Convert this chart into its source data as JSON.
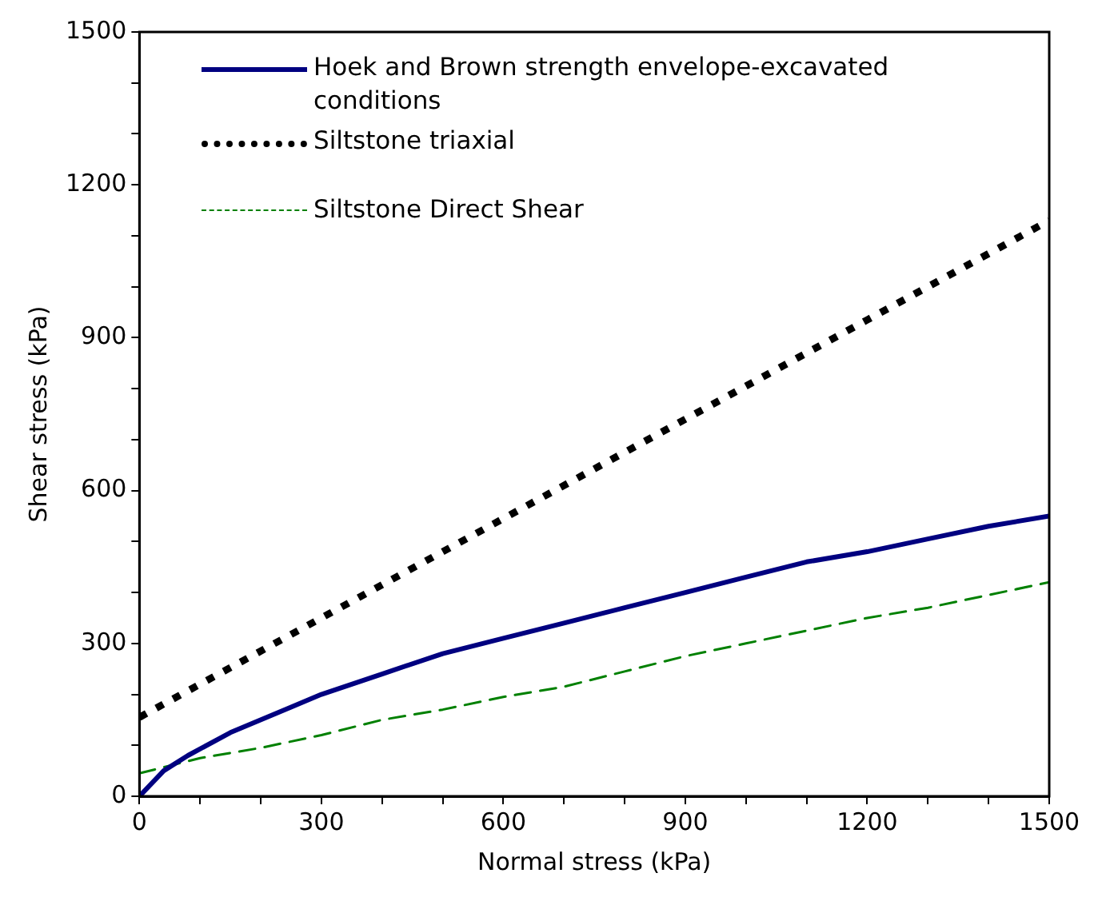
{
  "chart_data": {
    "type": "line",
    "xlabel": "Normal stress (kPa)",
    "ylabel": "Shear stress (kPa)",
    "xlim": [
      0,
      1500
    ],
    "ylim": [
      0,
      1500
    ],
    "xticks": [
      0,
      {
        "value": 100,
        "label": null
      },
      {
        "value": 200,
        "label": null
      },
      300,
      {
        "value": 400,
        "label": null
      },
      {
        "value": 500,
        "label": null
      },
      600,
      {
        "value": 700,
        "label": null
      },
      {
        "value": 800,
        "label": null
      },
      900,
      {
        "value": 1000,
        "label": null
      },
      {
        "value": 1100,
        "label": null
      },
      1200,
      {
        "value": 1300,
        "label": null
      },
      {
        "value": 1400,
        "label": null
      },
      1500
    ],
    "yticks": [
      0,
      {
        "value": 100,
        "label": null
      },
      {
        "value": 200,
        "label": null
      },
      300,
      {
        "value": 400,
        "label": null
      },
      {
        "value": 500,
        "label": null
      },
      600,
      {
        "value": 700,
        "label": null
      },
      {
        "value": 800,
        "label": null
      },
      900,
      {
        "value": 1000,
        "label": null
      },
      {
        "value": 1100,
        "label": null
      },
      1200,
      {
        "value": 1300,
        "label": null
      },
      {
        "value": 1400,
        "label": null
      },
      1500
    ],
    "grid": false,
    "legend": "top left",
    "marker": "none",
    "series": [
      {
        "name": "Hoek and Brown strength envelope-excavated conditions",
        "color": "#000080",
        "line_style": "solid",
        "x": [
          0,
          40,
          80,
          150,
          250,
          300,
          400,
          500,
          600,
          700,
          800,
          900,
          1000,
          1100,
          1200,
          1300,
          1400,
          1500
        ],
        "values": [
          0,
          50,
          80,
          125,
          175,
          200,
          240,
          280,
          310,
          340,
          370,
          400,
          430,
          460,
          480,
          505,
          530,
          550
        ]
      },
      {
        "name": "Siltstone triaxial",
        "color": "#000000",
        "line_style": "dotted",
        "x": [
          0,
          300,
          600,
          900,
          1200,
          1500
        ],
        "values": [
          155,
          350,
          545,
          740,
          935,
          1130
        ]
      },
      {
        "name": "Siltstone Direct Shear",
        "color": "#008000",
        "line_style": "dashed",
        "x": [
          0,
          100,
          200,
          300,
          400,
          500,
          600,
          700,
          800,
          900,
          1000,
          1100,
          1200,
          1300,
          1400,
          1500
        ],
        "values": [
          45,
          75,
          95,
          120,
          150,
          170,
          195,
          215,
          245,
          275,
          300,
          325,
          350,
          370,
          395,
          420
        ]
      }
    ]
  }
}
